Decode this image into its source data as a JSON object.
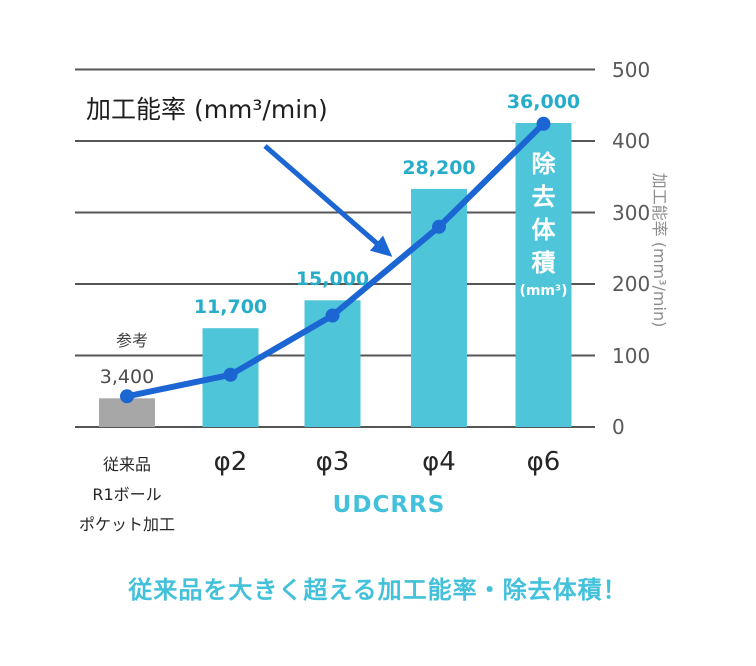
{
  "colors": {
    "bar_cyan": "#4EC5D9",
    "bar_gray": "#A7A7A7",
    "line_blue": "#1B66D2",
    "value_label_teal": "#27ADC9",
    "value_label_gray": "#4D4D4D",
    "accent_cyan": "#44C1DA",
    "gridline": "#555555",
    "axis_text": "#595959",
    "axis_title_text": "#8C8C8C",
    "bar_inner_text": "#FFFFFF"
  },
  "chart_data": {
    "type": "bar+line combo",
    "categories": [
      {
        "lines": [
          "従来品",
          "R1ボール",
          "ポケット加工"
        ]
      },
      {
        "lines": [
          "φ2"
        ]
      },
      {
        "lines": [
          "φ3"
        ]
      },
      {
        "lines": [
          "φ4"
        ]
      },
      {
        "lines": [
          "φ6"
        ]
      }
    ],
    "bar_series": {
      "name": "除去体積",
      "unit": "mm³",
      "values": [
        3400,
        11700,
        15000,
        28200,
        36000
      ],
      "value_labels": [
        "3,400",
        "11,700",
        "15,000",
        "28,200",
        "36,000"
      ]
    },
    "line_series": {
      "name": "加工能率",
      "unit": "mm³/min",
      "axis": "right",
      "values_estimated": [
        43,
        73,
        156,
        280,
        424
      ]
    },
    "right_axis": {
      "title": "加工能率 (mm³/min)",
      "ticks": [
        500,
        400,
        300,
        200,
        100,
        0
      ],
      "range": [
        0,
        500
      ],
      "grid": true
    },
    "x_axis_group_label": "UDCRRS",
    "reference_note": "参考"
  },
  "annotations": {
    "line_callout": "加工能率 (mm³/min)",
    "bar_inner_chars": [
      "除",
      "去",
      "体",
      "積"
    ],
    "bar_inner_unit": "(mm³)"
  },
  "caption": "従来品を大きく超える加工能率・除去体積！"
}
